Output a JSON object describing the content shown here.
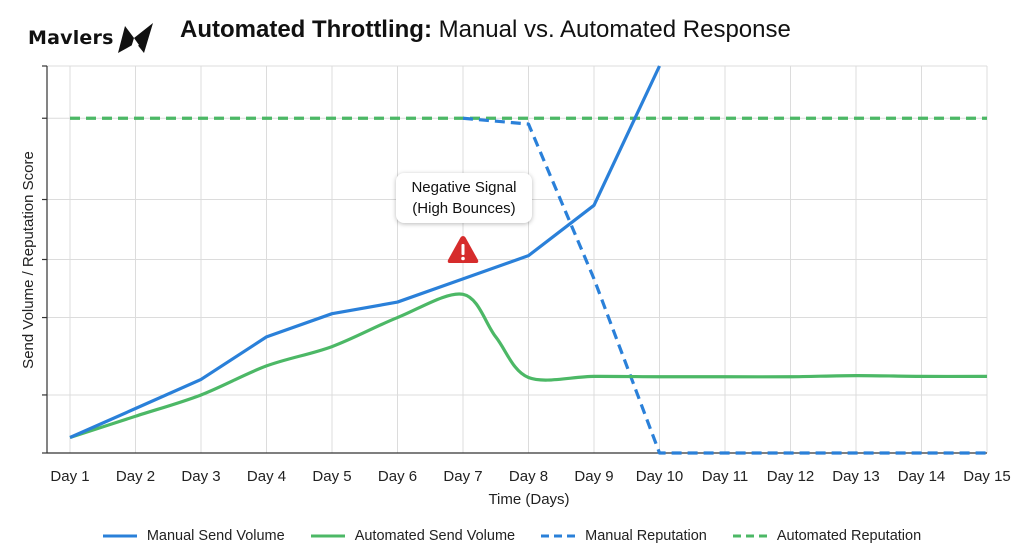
{
  "brand": {
    "logo_text": "Mavlers"
  },
  "title": {
    "bold": "Automated Throttling:",
    "rest": " Manual vs. Automated Response"
  },
  "annotation": {
    "line1": "Negative Signal",
    "line2": "(High Bounces)",
    "icon": "warning-triangle-icon",
    "icon_color": "#d62c2c"
  },
  "chart_data": {
    "type": "line",
    "title": "Automated Throttling: Manual vs. Automated Response",
    "xlabel": "Time (Days)",
    "ylabel": "Send Volume / Reputation Score",
    "categories": [
      "Day 1",
      "Day 2",
      "Day 3",
      "Day 4",
      "Day 5",
      "Day 6",
      "Day 7",
      "Day 8",
      "Day 9",
      "Day 10",
      "Day 11",
      "Day 12",
      "Day 13",
      "Day 14",
      "Day 15"
    ],
    "ylim": [
      0,
      100
    ],
    "y_tick_labels_shown": false,
    "grid": true,
    "legend_position": "bottom",
    "series": [
      {
        "name": "Manual Send Volume",
        "color": "#2a80d9",
        "style": "solid",
        "x": [
          1,
          2,
          3,
          4,
          5,
          6,
          7,
          8,
          9,
          10
        ],
        "values": [
          4,
          11.5,
          19,
          30,
          36,
          39,
          45,
          51,
          64,
          100
        ]
      },
      {
        "name": "Automated Send Volume",
        "color": "#4cb866",
        "style": "solid",
        "x": [
          1,
          2,
          3,
          4,
          5,
          6,
          7,
          7.5,
          8,
          9,
          10,
          11,
          12,
          13,
          14,
          15
        ],
        "values": [
          4,
          9.5,
          15,
          22.5,
          27.5,
          35,
          41,
          30,
          19.5,
          19.8,
          19.7,
          19.7,
          19.7,
          20,
          19.8,
          19.8
        ]
      },
      {
        "name": "Manual Reputation",
        "color": "#2a80d9",
        "style": "dashed",
        "x": [
          7,
          8,
          9,
          10,
          11,
          12,
          13,
          14,
          15
        ],
        "values": [
          86.5,
          85,
          45,
          0,
          0,
          0,
          0,
          0,
          0
        ]
      },
      {
        "name": "Automated Reputation",
        "color": "#4cb866",
        "style": "dashed",
        "x": [
          1,
          2,
          3,
          4,
          5,
          6,
          7,
          8,
          9,
          10,
          11,
          12,
          13,
          14,
          15
        ],
        "values": [
          86.5,
          86.5,
          86.5,
          86.5,
          86.5,
          86.5,
          86.5,
          86.5,
          86.5,
          86.5,
          86.5,
          86.5,
          86.5,
          86.5,
          86.5
        ]
      }
    ],
    "annotation": {
      "text": "Negative Signal (High Bounces)",
      "x": 7
    }
  }
}
